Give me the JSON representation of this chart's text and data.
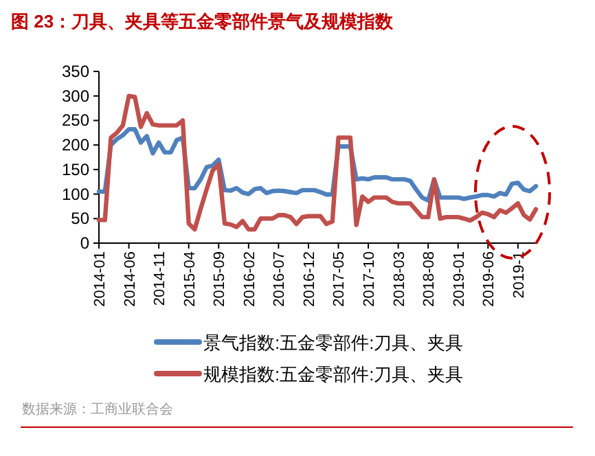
{
  "chart_data": {
    "type": "line",
    "title": "图 23：刀具、夹具等五金零部件景气及规模指数",
    "categories": [
      "2014-01",
      null,
      null,
      null,
      null,
      "2014-06",
      null,
      null,
      null,
      null,
      "2014-11",
      null,
      null,
      null,
      null,
      "2015-04",
      null,
      null,
      null,
      null,
      "2015-09",
      null,
      null,
      null,
      null,
      "2016-02",
      null,
      null,
      null,
      null,
      "2016-07",
      null,
      null,
      null,
      null,
      "2016-12",
      null,
      null,
      null,
      null,
      "2017-05",
      null,
      null,
      null,
      null,
      "2017-10",
      null,
      null,
      null,
      null,
      "2018-03",
      null,
      null,
      null,
      null,
      "2018-08",
      null,
      null,
      null,
      null,
      "2019-01",
      null,
      null,
      null,
      null,
      "2019-06",
      null,
      null,
      null,
      null,
      "2019-1",
      null,
      null,
      null
    ],
    "series": [
      {
        "name": "景气指数:五金零部件:刀具、夹具",
        "color": "#4f81bd",
        "values": [
          105,
          105,
          200,
          212,
          220,
          232,
          232,
          205,
          218,
          183,
          205,
          185,
          185,
          210,
          215,
          112,
          112,
          130,
          155,
          158,
          170,
          108,
          107,
          112,
          103,
          100,
          110,
          112,
          102,
          106,
          107,
          106,
          104,
          102,
          108,
          108,
          108,
          104,
          99,
          99,
          197,
          197,
          197,
          130,
          132,
          130,
          134,
          134,
          134,
          130,
          130,
          130,
          127,
          109,
          93,
          87,
          130,
          93,
          93,
          93,
          93,
          90,
          93,
          95,
          98,
          98,
          95,
          102,
          99,
          121,
          123,
          109,
          106,
          116
        ]
      },
      {
        "name": "规模指数:五金零部件:刀具、夹具",
        "color": "#c0504d",
        "values": [
          47,
          47,
          215,
          225,
          240,
          300,
          298,
          237,
          265,
          242,
          240,
          240,
          240,
          240,
          250,
          40,
          28,
          70,
          110,
          148,
          160,
          40,
          38,
          33,
          45,
          28,
          28,
          50,
          50,
          50,
          57,
          57,
          53,
          39,
          53,
          55,
          55,
          55,
          39,
          44,
          215,
          215,
          215,
          37,
          95,
          84,
          93,
          93,
          93,
          84,
          81,
          81,
          81,
          67,
          53,
          53,
          130,
          50,
          53,
          53,
          53,
          50,
          46,
          53,
          62,
          59,
          53,
          67,
          62,
          71,
          81,
          57,
          48,
          69
        ]
      }
    ],
    "ylim": [
      0,
      350
    ],
    "yticks": [
      0,
      50,
      100,
      150,
      200,
      250,
      300,
      350
    ],
    "legend": "bottom",
    "annotations": [
      "数据来源：工商业联合会"
    ]
  }
}
